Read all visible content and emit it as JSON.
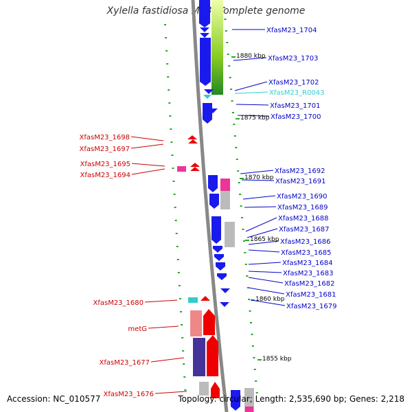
{
  "title": "Xylella fastidiosa M23, complete genome",
  "footer": {
    "accession": "Accession: NC_010577",
    "summary": "Topology: circular; Length: 2,535,690 bp; Genes: 2,218"
  },
  "colors": {
    "blue_label": "#0000cc",
    "red_label": "#cc0000",
    "cyan_label": "#33cccc",
    "cds_blue": "#1a1aee",
    "cds_red": "#ee0000",
    "gc_green": "#22aa22",
    "skew_gray": "#bbbbbb",
    "pink": "#ee3399",
    "cyan": "#33cccc",
    "backbone": "#888888"
  },
  "kbp_labels": [
    "1880 kbp",
    "1875 kbp",
    "1870 kbp",
    "1865 kbp",
    "1860 kbp",
    "1855 kbp"
  ],
  "right_genes": [
    {
      "label": "XfasM23_1704",
      "color": "#0000cc"
    },
    {
      "label": "XfasM23_1703",
      "color": "#0000cc"
    },
    {
      "label": "XfasM23_1702",
      "color": "#0000cc"
    },
    {
      "label": "XfasM23_R0043",
      "color": "#33cccc"
    },
    {
      "label": "XfasM23_1701",
      "color": "#0000cc"
    },
    {
      "label": "XfasM23_1700",
      "color": "#0000cc"
    },
    {
      "label": "XfasM23_1692",
      "color": "#0000cc"
    },
    {
      "label": "XfasM23_1691",
      "color": "#0000cc"
    },
    {
      "label": "XfasM23_1690",
      "color": "#0000cc"
    },
    {
      "label": "XfasM23_1689",
      "color": "#0000cc"
    },
    {
      "label": "XfasM23_1688",
      "color": "#0000cc"
    },
    {
      "label": "XfasM23_1687",
      "color": "#0000cc"
    },
    {
      "label": "XfasM23_1686",
      "color": "#0000cc"
    },
    {
      "label": "XfasM23_1685",
      "color": "#0000cc"
    },
    {
      "label": "XfasM23_1684",
      "color": "#0000cc"
    },
    {
      "label": "XfasM23_1683",
      "color": "#0000cc"
    },
    {
      "label": "XfasM23_1682",
      "color": "#0000cc"
    },
    {
      "label": "XfasM23_1681",
      "color": "#0000cc"
    },
    {
      "label": "XfasM23_1679",
      "color": "#0000cc"
    }
  ],
  "left_genes": [
    {
      "label": "XfasM23_1698",
      "color": "#cc0000"
    },
    {
      "label": "XfasM23_1697",
      "color": "#cc0000"
    },
    {
      "label": "XfasM23_1695",
      "color": "#cc0000"
    },
    {
      "label": "XfasM23_1694",
      "color": "#cc0000"
    },
    {
      "label": "XfasM23_1680",
      "color": "#cc0000"
    },
    {
      "label": "metG",
      "color": "#cc0000"
    },
    {
      "label": "XfasM23_1677",
      "color": "#cc0000"
    },
    {
      "label": "XfasM23_1676",
      "color": "#cc0000"
    }
  ]
}
